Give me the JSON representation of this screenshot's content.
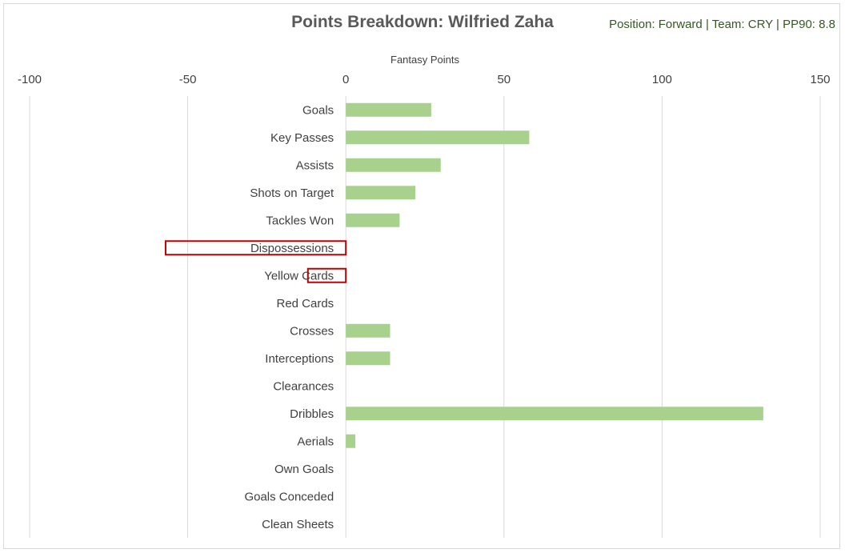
{
  "chart_data": {
    "type": "bar",
    "orientation": "horizontal",
    "title": "Points Breakdown: Wilfried Zaha",
    "subtitle": "Position: Forward | Team: CRY | PP90: 8.8",
    "xlabel": "Fantasy Points",
    "ylabel": "",
    "xlim": [
      -100,
      150
    ],
    "x_ticks": [
      "-100",
      "-50",
      "0",
      "50",
      "100",
      "150"
    ],
    "x_tick_values": [
      -100,
      -50,
      0,
      50,
      100,
      150
    ],
    "axis_position": "top",
    "grid": true,
    "categories": [
      "Goals",
      "Key Passes",
      "Assists",
      "Shots on Target",
      "Tackles Won",
      "Dispossessions",
      "Yellow Cards",
      "Red Cards",
      "Crosses",
      "Interceptions",
      "Clearances",
      "Dribbles",
      "Aerials",
      "Own Goals",
      "Goals Conceded",
      "Clean Sheets"
    ],
    "values": [
      27,
      58,
      30,
      22,
      17,
      -57,
      -12,
      0,
      14,
      14,
      0,
      132,
      3,
      0,
      0,
      0
    ],
    "colors": {
      "positive_fill": "#a9d18e",
      "negative_outline": "#c00000",
      "grid": "#d9d9d9",
      "title": "#595959",
      "subtitle": "#375623"
    }
  }
}
